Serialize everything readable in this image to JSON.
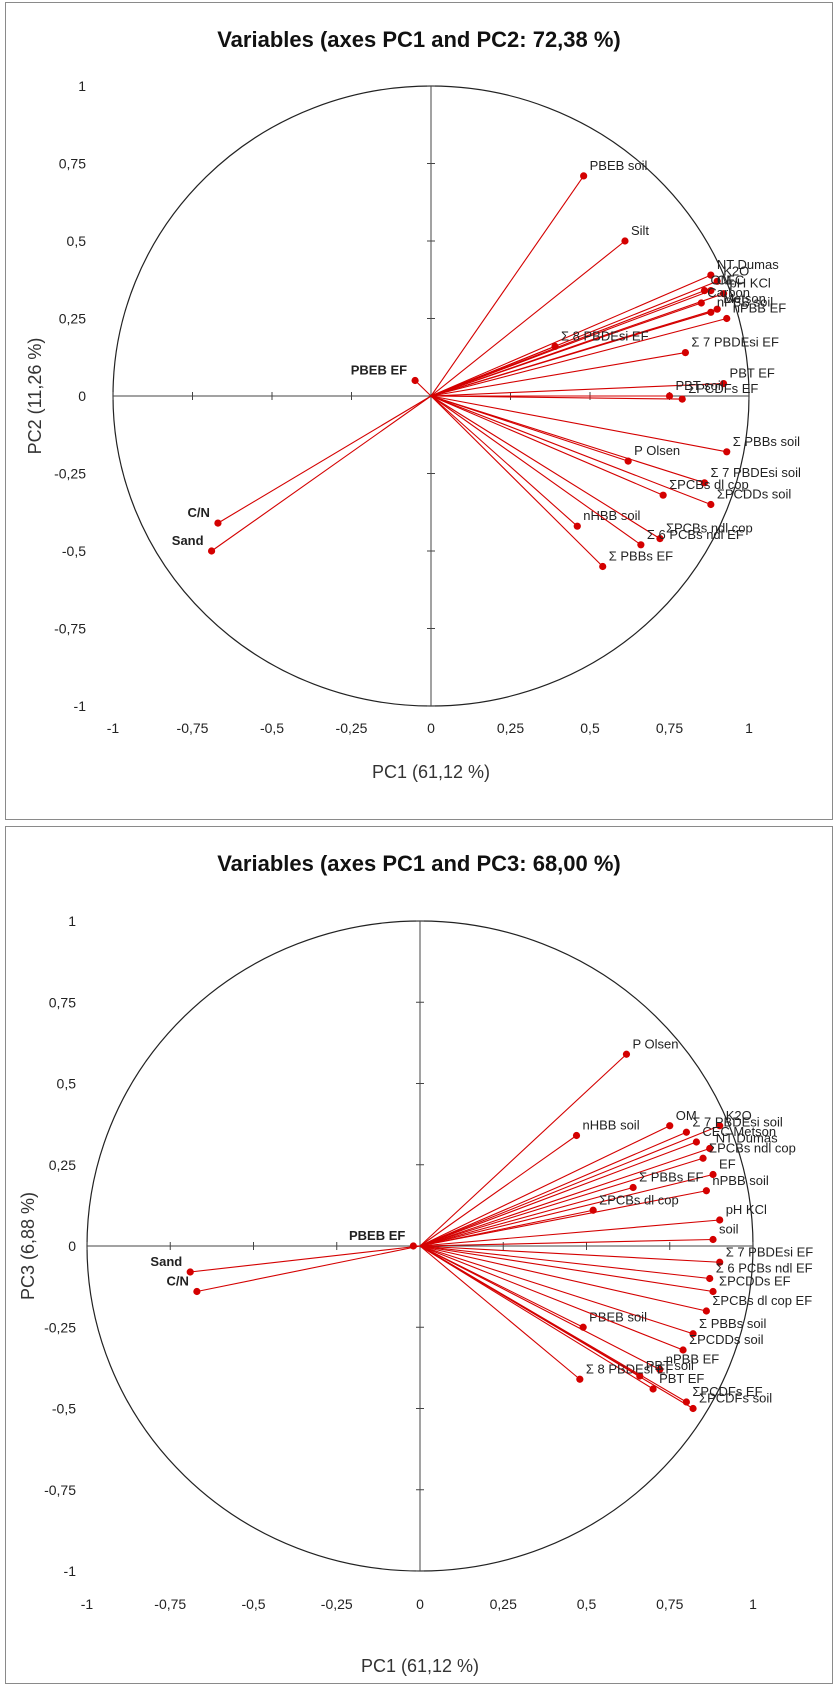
{
  "chart_data": [
    {
      "type": "scatter",
      "title": "Variables (axes PC1 and PC2: 72,38 %)",
      "xlabel": "PC1 (61,12 %)",
      "ylabel": "PC2 (11,26 %)",
      "xlim": [
        -1,
        1
      ],
      "ylim": [
        -1,
        1
      ],
      "xticks": [
        "-1",
        "-0,75",
        "-0,5",
        "-0,25",
        "0",
        "0,25",
        "0,5",
        "0,75",
        "1"
      ],
      "yticks": [
        "1",
        "0,75",
        "0,5",
        "0,25",
        "0",
        "-0,25",
        "-0,5",
        "-0,75",
        "-1"
      ],
      "correlation_circle": true,
      "vectors": [
        {
          "label": "PBEB soil",
          "x": 0.48,
          "y": 0.71
        },
        {
          "label": "Silt",
          "x": 0.61,
          "y": 0.5
        },
        {
          "label": "NT Dumas",
          "x": 0.88,
          "y": 0.39
        },
        {
          "label": "K2O",
          "x": 0.9,
          "y": 0.37
        },
        {
          "label": "OM",
          "x": 0.86,
          "y": 0.34
        },
        {
          "label": "CEC",
          "x": 0.88,
          "y": 0.34
        },
        {
          "label": "pH KCl",
          "x": 0.92,
          "y": 0.33
        },
        {
          "label": "Carbon",
          "x": 0.85,
          "y": 0.3
        },
        {
          "label": "Metson",
          "x": 0.9,
          "y": 0.28
        },
        {
          "label": "nPBB soil",
          "x": 0.88,
          "y": 0.27
        },
        {
          "label": "Σ 8 PBDEsi EF",
          "x": 0.39,
          "y": 0.16
        },
        {
          "label": "nPBB EF",
          "x": 0.93,
          "y": 0.25
        },
        {
          "label": "Σ 7 PBDEsi EF",
          "x": 0.8,
          "y": 0.14
        },
        {
          "label": "PBEB EF",
          "x": -0.05,
          "y": 0.05
        },
        {
          "label": "PBT EF",
          "x": 0.92,
          "y": 0.04
        },
        {
          "label": "PBT soil",
          "x": 0.75,
          "y": 0.0
        },
        {
          "label": "ΣPCDFs EF",
          "x": 0.79,
          "y": -0.01
        },
        {
          "label": "Σ PBBs soil",
          "x": 0.93,
          "y": -0.18
        },
        {
          "label": "P Olsen",
          "x": 0.62,
          "y": -0.21
        },
        {
          "label": "Σ 7 PBDEsi soil",
          "x": 0.86,
          "y": -0.28
        },
        {
          "label": "ΣPCBs dl cop",
          "x": 0.73,
          "y": -0.32
        },
        {
          "label": "ΣPCDDs soil",
          "x": 0.88,
          "y": -0.35
        },
        {
          "label": "nHBB soil",
          "x": 0.46,
          "y": -0.42
        },
        {
          "label": "ΣPCBs ndl cop",
          "x": 0.72,
          "y": -0.46
        },
        {
          "label": "Σ 6 PCBs ndl EF",
          "x": 0.66,
          "y": -0.48
        },
        {
          "label": "Σ PBBs EF",
          "x": 0.54,
          "y": -0.55
        },
        {
          "label": "C/N",
          "x": -0.67,
          "y": -0.41
        },
        {
          "label": "Sand",
          "x": -0.69,
          "y": -0.5
        }
      ]
    },
    {
      "type": "scatter",
      "title": "Variables (axes PC1 and PC3: 68,00 %)",
      "xlabel": "PC1 (61,12 %)",
      "ylabel": "PC3 (6,88 %)",
      "xlim": [
        -1,
        1
      ],
      "ylim": [
        -1,
        1
      ],
      "xticks": [
        "-1",
        "-0,75",
        "-0,5",
        "-0,25",
        "0",
        "0,25",
        "0,5",
        "0,75",
        "1"
      ],
      "yticks": [
        "1",
        "0,75",
        "0,5",
        "0,25",
        "0",
        "-0,25",
        "-0,5",
        "-0,75",
        "-1"
      ],
      "correlation_circle": true,
      "vectors": [
        {
          "label": "P Olsen",
          "x": 0.62,
          "y": 0.59
        },
        {
          "label": "K2O",
          "x": 0.9,
          "y": 0.37
        },
        {
          "label": "OM",
          "x": 0.75,
          "y": 0.37
        },
        {
          "label": "nHBB soil",
          "x": 0.47,
          "y": 0.34
        },
        {
          "label": "Σ 7 PBDEsi soil",
          "x": 0.8,
          "y": 0.35
        },
        {
          "label": "CEC Metson",
          "x": 0.83,
          "y": 0.32
        },
        {
          "label": "NT Dumas",
          "x": 0.87,
          "y": 0.3
        },
        {
          "label": "ΣPCBs ndl cop",
          "x": 0.85,
          "y": 0.27
        },
        {
          "label": "EF",
          "x": 0.88,
          "y": 0.22
        },
        {
          "label": "nPBB soil",
          "x": 0.86,
          "y": 0.17
        },
        {
          "label": "Σ PBBs EF",
          "x": 0.64,
          "y": 0.18
        },
        {
          "label": "ΣPCBs dl cop",
          "x": 0.52,
          "y": 0.11
        },
        {
          "label": "pH KCl",
          "x": 0.9,
          "y": 0.08
        },
        {
          "label": "soil",
          "x": 0.88,
          "y": 0.02
        },
        {
          "label": "PBEB EF",
          "x": -0.02,
          "y": 0.0
        },
        {
          "label": "Σ 7 PBDEsi EF",
          "x": 0.9,
          "y": -0.05
        },
        {
          "label": "Σ 6 PCBs ndl EF",
          "x": 0.87,
          "y": -0.1
        },
        {
          "label": "ΣPCDDs EF",
          "x": 0.88,
          "y": -0.14
        },
        {
          "label": "ΣPCBs dl cop EF",
          "x": 0.86,
          "y": -0.2
        },
        {
          "label": "Σ PBBs soil",
          "x": 0.82,
          "y": -0.27
        },
        {
          "label": "PBEB soil",
          "x": 0.49,
          "y": -0.25
        },
        {
          "label": "ΣPCDDs soil",
          "x": 0.79,
          "y": -0.32
        },
        {
          "label": "nPBB EF",
          "x": 0.72,
          "y": -0.38
        },
        {
          "label": "PBT soil",
          "x": 0.66,
          "y": -0.4
        },
        {
          "label": "PBT EF",
          "x": 0.7,
          "y": -0.44
        },
        {
          "label": "Σ 8 PBDEsi EF",
          "x": 0.48,
          "y": -0.41
        },
        {
          "label": "ΣPCDFs EF",
          "x": 0.8,
          "y": -0.48
        },
        {
          "label": "ΣPCDFs soil",
          "x": 0.82,
          "y": -0.5
        },
        {
          "label": "Sand",
          "x": -0.69,
          "y": -0.08
        },
        {
          "label": "C/N",
          "x": -0.67,
          "y": -0.14
        }
      ]
    }
  ],
  "colors": {
    "vector": "#d40000",
    "axis": "#444444",
    "circle": "#222222"
  }
}
